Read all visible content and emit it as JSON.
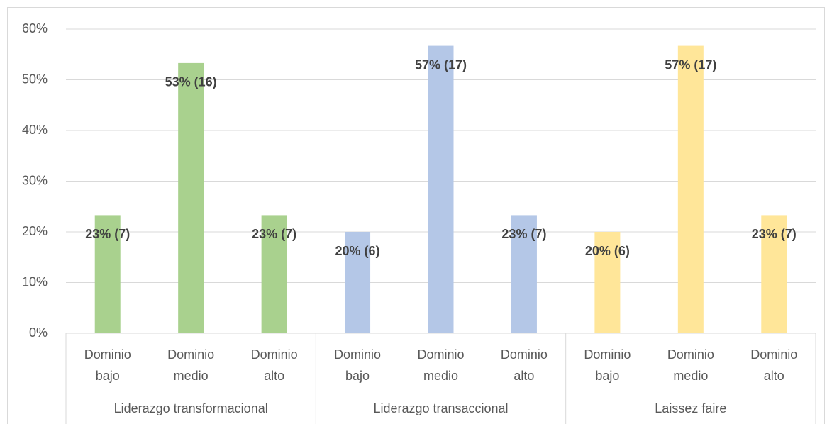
{
  "chart_data": {
    "type": "bar",
    "ylim": [
      0,
      60
    ],
    "yticks": [
      {
        "value": 0,
        "label": "0%"
      },
      {
        "value": 10,
        "label": "10%"
      },
      {
        "value": 20,
        "label": "20%"
      },
      {
        "value": 30,
        "label": "30%"
      },
      {
        "value": 40,
        "label": "40%"
      },
      {
        "value": 50,
        "label": "50%"
      },
      {
        "value": 60,
        "label": "60%"
      }
    ],
    "grid": true,
    "groups": [
      {
        "name": "Liderazgo transformacional",
        "color": "#a9d18e",
        "categories": [
          "Dominio bajo",
          "Dominio medio",
          "Dominio alto"
        ],
        "values": [
          23.3,
          53.3,
          23.3
        ],
        "value_labels": [
          "23% (7)",
          "53% (16)",
          "23% (7)"
        ]
      },
      {
        "name": "Liderazgo transaccional",
        "color": "#b4c7e7",
        "categories": [
          "Dominio bajo",
          "Dominio medio",
          "Dominio alto"
        ],
        "values": [
          20,
          56.7,
          23.3
        ],
        "value_labels": [
          "20% (6)",
          "57% (17)",
          "23% (7)"
        ]
      },
      {
        "name": "Laissez faire",
        "color": "#ffe699",
        "categories": [
          "Dominio bajo",
          "Dominio medio",
          "Dominio alto"
        ],
        "values": [
          20,
          56.7,
          23.3
        ],
        "value_labels": [
          "20% (6)",
          "57% (17)",
          "23% (7)"
        ]
      }
    ]
  }
}
